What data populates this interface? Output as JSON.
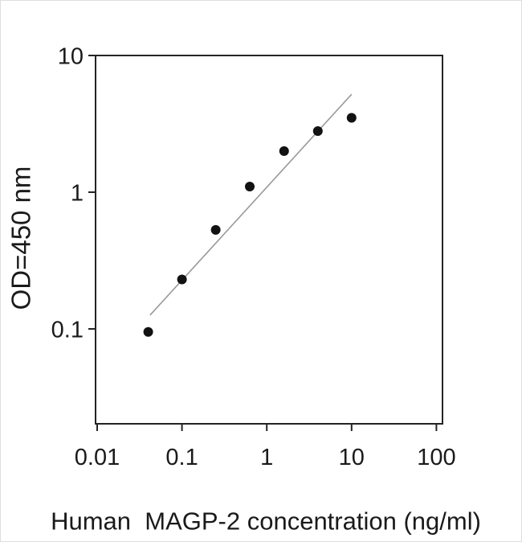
{
  "figure": {
    "background": "#ffffff",
    "border_color": "#dedede"
  },
  "chart_data": {
    "type": "scatter",
    "title": "",
    "xlabel": "Human  MAGP-2 concentration (ng/ml)",
    "ylabel": "OD=450 nm",
    "x_scale": "log",
    "y_scale": "log",
    "xlim": [
      0.01,
      117
    ],
    "ylim": [
      0.02,
      10
    ],
    "grid": false,
    "legend": "none",
    "x_ticks": [
      0.01,
      0.1,
      1,
      10,
      100
    ],
    "x_tick_labels": [
      "0.01",
      "0.1",
      "1",
      "10",
      "100"
    ],
    "y_ticks": [
      10,
      1,
      0.1
    ],
    "y_tick_labels": [
      "10",
      "1",
      "0.1"
    ],
    "points": [
      {
        "x": 0.04,
        "y": 0.095
      },
      {
        "x": 0.1,
        "y": 0.23
      },
      {
        "x": 0.25,
        "y": 0.53
      },
      {
        "x": 0.63,
        "y": 1.1
      },
      {
        "x": 1.6,
        "y": 2.0
      },
      {
        "x": 4,
        "y": 2.8
      },
      {
        "x": 10,
        "y": 3.5
      }
    ],
    "fit_line": {
      "x1": 0.042,
      "y1": 0.126,
      "x2": 10,
      "y2": 5.2
    },
    "colors": {
      "point": "#121212",
      "fit_line": "#999999",
      "frame": "#242424",
      "text": "#1a1a1a"
    }
  }
}
